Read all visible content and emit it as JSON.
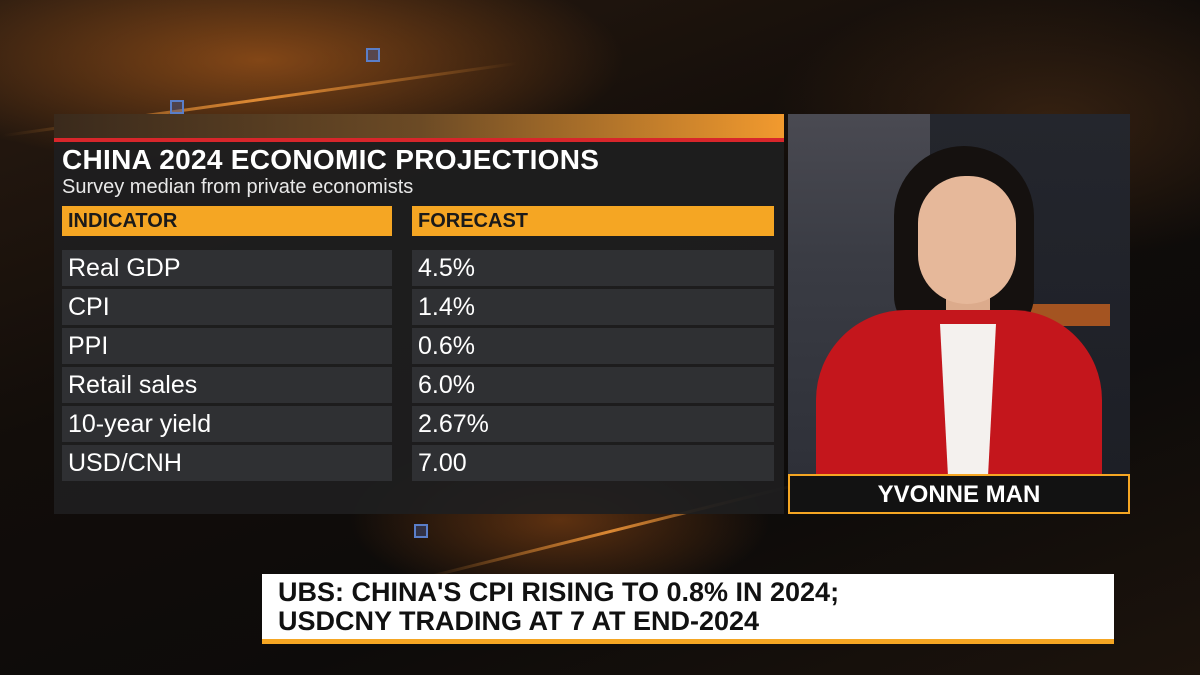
{
  "graphic": {
    "title": "CHINA 2024 ECONOMIC PROJECTIONS",
    "subtitle": "Survey median from private economists",
    "columns": {
      "indicator": "INDICATOR",
      "forecast": "FORECAST"
    },
    "rows": [
      {
        "indicator": "Real GDP",
        "forecast": "4.5%"
      },
      {
        "indicator": "CPI",
        "forecast": "1.4%"
      },
      {
        "indicator": "PPI",
        "forecast": "0.6%"
      },
      {
        "indicator": "Retail sales",
        "forecast": "6.0%"
      },
      {
        "indicator": "10-year yield",
        "forecast": "2.67%"
      },
      {
        "indicator": "USD/CNH",
        "forecast": "7.00"
      }
    ]
  },
  "presenter": {
    "name": "YVONNE MAN"
  },
  "headline": {
    "line1": "UBS: CHINA'S CPI RISING TO 0.8% IN 2024;",
    "line2": "USDCNY TRADING AT 7 AT END-2024"
  },
  "colors": {
    "accent": "#f5a623",
    "title_rule": "#d8262b",
    "panel_bg": "#1e1e20",
    "cell_bg": "#2f3033",
    "jacket": "#c4161c"
  }
}
